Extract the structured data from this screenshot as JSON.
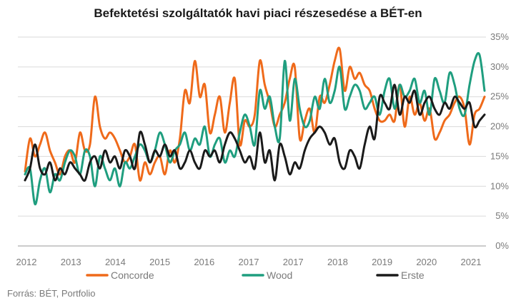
{
  "chart_data": {
    "type": "line",
    "title": "Befektetési szolgáltatók havi piaci részesedése a BÉT-en",
    "source": "Forrás: BÉT, Portfolio",
    "x_tick_labels": [
      "2012",
      "2013",
      "2014",
      "2015",
      "2016",
      "2017",
      "2017",
      "2018",
      "2019",
      "2020",
      "2021"
    ],
    "y_tick_labels": [
      "0%",
      "5%",
      "10%",
      "15%",
      "20%",
      "25%",
      "30%",
      "35%"
    ],
    "ylim": [
      0,
      35
    ],
    "grid": true,
    "legend_position": "bottom",
    "colors": {
      "Concorde": "#ef6a1a",
      "Wood": "#1f9e7f",
      "Erste": "#1a1a1a"
    },
    "x": [
      2012.0,
      2012.1,
      2012.2,
      2012.3,
      2012.4,
      2012.5,
      2012.6,
      2012.7,
      2012.8,
      2012.9,
      2013.0,
      2013.1,
      2013.2,
      2013.3,
      2013.4,
      2013.5,
      2013.6,
      2013.7,
      2013.8,
      2013.9,
      2014.0,
      2014.1,
      2014.2,
      2014.3,
      2014.4,
      2014.5,
      2014.6,
      2014.7,
      2014.8,
      2014.9,
      2015.0,
      2015.1,
      2015.2,
      2015.3,
      2015.4,
      2015.5,
      2015.6,
      2015.7,
      2015.8,
      2015.9,
      2016.0,
      2016.1,
      2016.2,
      2016.3,
      2016.4,
      2016.5,
      2016.6,
      2016.7,
      2016.8,
      2016.9,
      2017.0,
      2017.1,
      2017.2,
      2017.3,
      2017.4,
      2017.5,
      2017.6,
      2017.7,
      2017.8,
      2017.9,
      2018.0,
      2018.1,
      2018.2,
      2018.3,
      2018.4,
      2018.5,
      2018.6,
      2018.7,
      2018.8,
      2018.9,
      2019.0,
      2019.1,
      2019.2,
      2019.3,
      2019.4,
      2019.5,
      2019.6,
      2019.7,
      2019.8,
      2019.9,
      2020.0,
      2020.1,
      2020.2,
      2020.3,
      2020.4,
      2020.5,
      2020.6,
      2020.7,
      2020.8,
      2020.9,
      2021.0,
      2021.1,
      2021.2
    ],
    "series": [
      {
        "name": "Concorde",
        "values": [
          12.5,
          18,
          15,
          17,
          19,
          16,
          14,
          12,
          15,
          16,
          14,
          19,
          16,
          17,
          25,
          20,
          18,
          19,
          18,
          16,
          14,
          15,
          17,
          11,
          14,
          12,
          14,
          15,
          12,
          16,
          14,
          18,
          26,
          24,
          31,
          25,
          27,
          19,
          22,
          25,
          19,
          24,
          28,
          17,
          21,
          20,
          22,
          31,
          27,
          24,
          20,
          22,
          24,
          28,
          30,
          18,
          21,
          23,
          19,
          25,
          24,
          27,
          31,
          33,
          26,
          30,
          28,
          29,
          27,
          26,
          23,
          21,
          21,
          22,
          21,
          27,
          20,
          25,
          22,
          24,
          21,
          23,
          18,
          19,
          21,
          22,
          24,
          25,
          23,
          17,
          22,
          23,
          25
        ]
      },
      {
        "name": "Wood",
        "values": [
          12,
          13,
          7,
          11,
          13,
          9,
          12,
          11,
          14,
          16,
          15,
          12,
          16,
          15,
          10,
          15,
          13,
          11,
          13,
          10,
          14,
          13,
          15,
          17,
          16,
          14,
          16,
          19,
          17,
          14,
          16,
          17,
          19,
          16,
          18,
          17,
          20,
          15,
          17,
          18,
          14,
          16,
          15,
          19,
          22,
          20,
          17,
          26,
          23,
          25,
          20,
          18,
          31,
          21,
          28,
          23,
          20,
          21,
          25,
          23,
          28,
          24,
          26,
          30,
          23,
          25,
          27,
          26,
          23,
          24,
          25,
          22,
          26,
          28,
          23,
          27,
          25,
          26,
          28,
          24,
          26,
          22,
          28,
          26,
          24,
          29,
          27,
          23,
          22,
          27,
          31,
          32,
          26
        ]
      },
      {
        "name": "Erste",
        "values": [
          11,
          13,
          17,
          13,
          12,
          14,
          11,
          13,
          12,
          14,
          13,
          12,
          11,
          14,
          15,
          13,
          16,
          14,
          15,
          13,
          16,
          15,
          13,
          19,
          17,
          14,
          16,
          15,
          17,
          15,
          16,
          13,
          14,
          16,
          14,
          13,
          16,
          15,
          16,
          14,
          17,
          19,
          18,
          16,
          14,
          15,
          13,
          19,
          14,
          16,
          11,
          17,
          15,
          12,
          14,
          13,
          16,
          18,
          19,
          20,
          19,
          17,
          18,
          14,
          13,
          16,
          15,
          13,
          17,
          20,
          18,
          25,
          24,
          23,
          27,
          22,
          25,
          24,
          26,
          22,
          24,
          25,
          23,
          22,
          24,
          23,
          25,
          24,
          23,
          24,
          20,
          21,
          22
        ]
      }
    ]
  }
}
